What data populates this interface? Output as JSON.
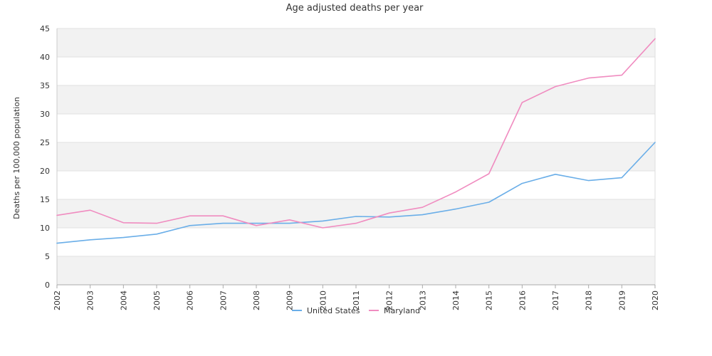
{
  "chart_data": {
    "type": "line",
    "title": "Age adjusted deaths per year",
    "xlabel": "",
    "ylabel": "Deaths per 100,000 population",
    "x": [
      "2002",
      "2003",
      "2004",
      "2005",
      "2006",
      "2007",
      "2008",
      "2009",
      "2010",
      "2011",
      "2012",
      "2013",
      "2014",
      "2015",
      "2016",
      "2017",
      "2018",
      "2019",
      "2020"
    ],
    "ylim": [
      0,
      45
    ],
    "yticks": [
      0,
      5,
      10,
      15,
      20,
      25,
      30,
      35,
      40,
      45
    ],
    "grid": "alternating horizontal bands",
    "legend_position": "bottom-center",
    "series": [
      {
        "name": "United States",
        "color": "#6aaee8",
        "values": [
          7.3,
          7.9,
          8.3,
          8.9,
          10.4,
          10.8,
          10.8,
          10.8,
          11.2,
          12.0,
          11.9,
          12.3,
          13.3,
          14.5,
          17.8,
          19.4,
          18.3,
          18.8,
          25.0
        ]
      },
      {
        "name": "Maryland",
        "color": "#f08cc0",
        "values": [
          12.2,
          13.1,
          10.9,
          10.8,
          12.1,
          12.1,
          10.4,
          11.4,
          10.0,
          10.8,
          12.6,
          13.6,
          16.3,
          19.5,
          32.0,
          34.8,
          36.3,
          36.8,
          43.2
        ]
      }
    ]
  }
}
